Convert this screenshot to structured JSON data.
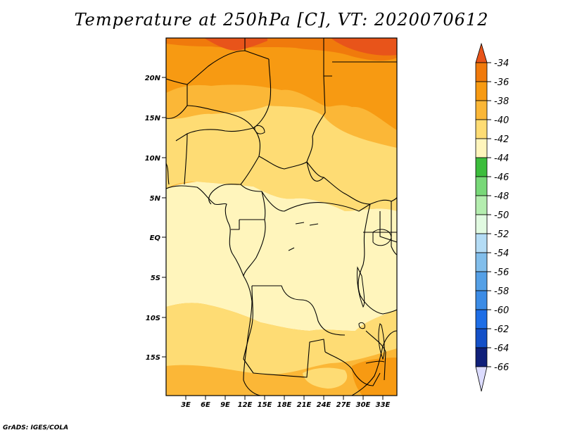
{
  "title": "Temperature at 250hPa [C], VT: 2020070612",
  "credit": "GrADS: IGES/COLA",
  "map": {
    "lon_labels": [
      "3E",
      "6E",
      "9E",
      "12E",
      "15E",
      "18E",
      "21E",
      "24E",
      "27E",
      "30E",
      "33E"
    ],
    "lat_labels": [
      "20N",
      "15N",
      "10N",
      "5N",
      "EQ",
      "5S",
      "10S",
      "15S"
    ]
  },
  "colorbar": {
    "labels": [
      "-34",
      "-36",
      "-38",
      "-40",
      "-42",
      "-44",
      "-46",
      "-48",
      "-50",
      "-52",
      "-54",
      "-56",
      "-58",
      "-60",
      "-62",
      "-64",
      "-66"
    ],
    "colors": {
      "above_-34": "#e8541a",
      "-36_-34": "#f07a0c",
      "-38_-36": "#f79a12",
      "-40_-38": "#fbb737",
      "-42_-40": "#fedc74",
      "-44_-42": "#fff5bc",
      "-46_-44": "#3cbd3c",
      "-48_-46": "#78d878",
      "-50_-48": "#b4edaf",
      "-52_-50": "#e1fae1",
      "-54_-52": "#b4dcf5",
      "-56_-54": "#82beeb",
      "-58_-56": "#55a0e6",
      "-60_-58": "#3c8ce6",
      "-62_-60": "#1e6ee6",
      "-64_-62": "#1450c8",
      "-66_-64": "#10207a",
      "below_-66": "#dcdcff"
    }
  }
}
